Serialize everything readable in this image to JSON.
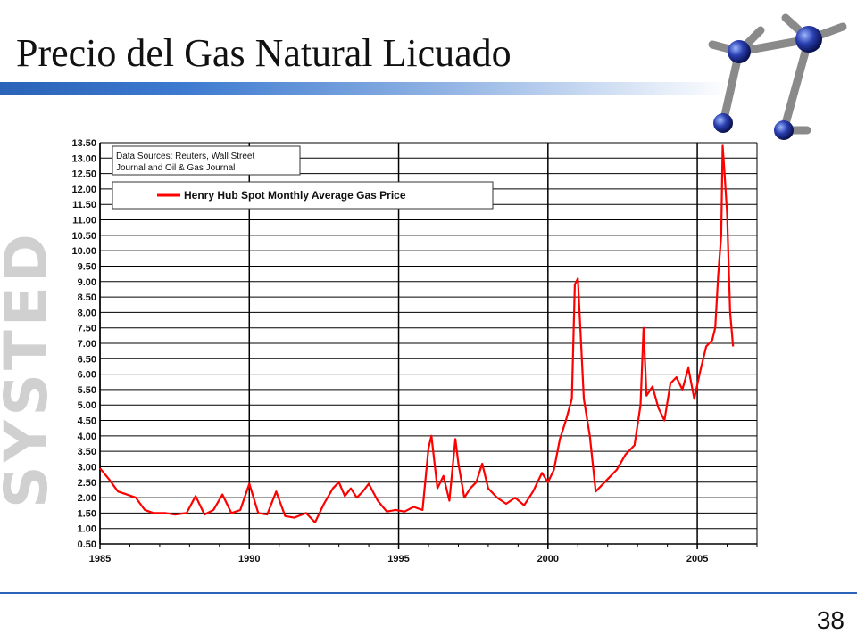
{
  "slide": {
    "title": "Precio del Gas Natural Licuado",
    "page_number": "38",
    "watermark_text": "SYSTED",
    "colors": {
      "title_bar": "#2a63b8",
      "series": "#ff0000",
      "watermark": "#d0d0d0"
    }
  },
  "chart_data": {
    "type": "line",
    "title": "",
    "xlabel": "",
    "ylabel": "",
    "xlim": [
      1985,
      2007
    ],
    "ylim": [
      0.5,
      13.5
    ],
    "y_step": 0.5,
    "x_ticks": [
      "1985",
      "1990",
      "1995",
      "2000",
      "2005"
    ],
    "y_ticks": [
      "0.50",
      "1.00",
      "1.50",
      "2.00",
      "2.50",
      "3.00",
      "3.50",
      "4.00",
      "4.50",
      "5.00",
      "5.50",
      "6.00",
      "6.50",
      "7.00",
      "7.50",
      "8.00",
      "8.50",
      "9.00",
      "9.50",
      "10.00",
      "10.50",
      "11.00",
      "11.50",
      "12.00",
      "12.50",
      "13.00",
      "13.50"
    ],
    "grid": true,
    "source_note": [
      "Data Sources:  Reuters, Wall Street",
      "Journal and Oil & Gas Journal"
    ],
    "legend_position": "top-left",
    "series": [
      {
        "name": "Henry Hub Spot Monthly Average Gas Price",
        "color": "#ff0000",
        "x": [
          1985.0,
          1985.3,
          1985.6,
          1985.9,
          1986.2,
          1986.5,
          1986.8,
          1987.2,
          1987.5,
          1987.9,
          1988.2,
          1988.5,
          1988.8,
          1989.1,
          1989.4,
          1989.7,
          1990.0,
          1990.3,
          1990.6,
          1990.9,
          1991.2,
          1991.5,
          1991.9,
          1992.2,
          1992.5,
          1992.8,
          1993.0,
          1993.2,
          1993.4,
          1993.6,
          1993.8,
          1994.0,
          1994.3,
          1994.6,
          1994.9,
          1995.2,
          1995.5,
          1995.8,
          1996.0,
          1996.1,
          1996.3,
          1996.5,
          1996.7,
          1996.9,
          1997.0,
          1997.2,
          1997.4,
          1997.6,
          1997.8,
          1998.0,
          1998.3,
          1998.6,
          1998.9,
          1999.2,
          1999.5,
          1999.8,
          2000.0,
          2000.2,
          2000.4,
          2000.6,
          2000.8,
          2000.9,
          2001.0,
          2001.2,
          2001.4,
          2001.6,
          2001.8,
          2002.0,
          2002.3,
          2002.6,
          2002.9,
          2003.1,
          2003.2,
          2003.3,
          2003.5,
          2003.7,
          2003.9,
          2004.1,
          2004.3,
          2004.5,
          2004.7,
          2004.9,
          2005.1,
          2005.3,
          2005.5,
          2005.6,
          2005.7,
          2005.8,
          2005.85,
          2005.9,
          2006.0,
          2006.1,
          2006.2
        ],
        "y": [
          2.95,
          2.6,
          2.2,
          2.1,
          2.0,
          1.6,
          1.5,
          1.5,
          1.45,
          1.5,
          2.05,
          1.45,
          1.6,
          2.1,
          1.5,
          1.6,
          2.45,
          1.5,
          1.45,
          2.2,
          1.4,
          1.35,
          1.5,
          1.2,
          1.8,
          2.3,
          2.5,
          2.05,
          2.3,
          2.0,
          2.2,
          2.45,
          1.9,
          1.55,
          1.6,
          1.55,
          1.7,
          1.6,
          3.6,
          4.0,
          2.3,
          2.7,
          1.9,
          3.9,
          3.1,
          2.0,
          2.3,
          2.5,
          3.1,
          2.3,
          2.0,
          1.8,
          2.0,
          1.75,
          2.2,
          2.8,
          2.5,
          2.9,
          3.9,
          4.5,
          5.2,
          8.9,
          9.1,
          5.2,
          4.0,
          2.2,
          2.4,
          2.6,
          2.9,
          3.4,
          3.7,
          5.0,
          7.5,
          5.3,
          5.6,
          4.9,
          4.5,
          5.7,
          5.9,
          5.5,
          6.2,
          5.2,
          6.1,
          6.9,
          7.1,
          7.5,
          9.2,
          10.5,
          13.4,
          12.7,
          11.2,
          8.0,
          6.9
        ]
      }
    ]
  }
}
